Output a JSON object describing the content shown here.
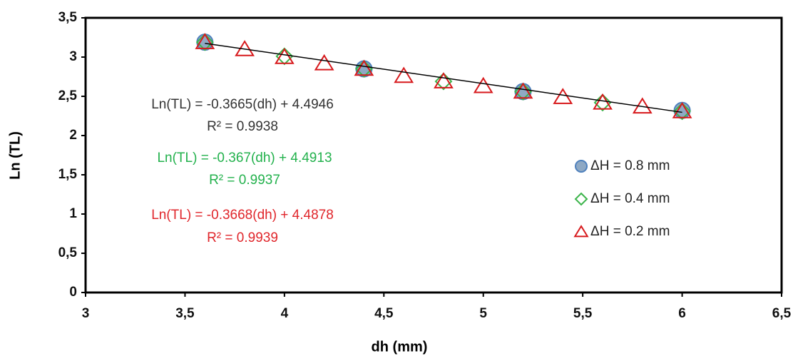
{
  "chart_data": {
    "type": "scatter",
    "x_label": "dh (mm)",
    "y_label": "Ln (TL)",
    "xlim": [
      3,
      6.5
    ],
    "xticks": [
      3,
      {
        "value": 3.5,
        "label": "3,5"
      },
      4,
      {
        "value": 4.5,
        "label": "4,5"
      },
      5,
      {
        "value": 5.5,
        "label": "5,5"
      },
      6,
      {
        "value": 6.5,
        "label": "6,5"
      }
    ],
    "ylim": [
      0,
      3.5
    ],
    "yticks": [
      0,
      {
        "value": 0.5,
        "label": "0,5"
      },
      1,
      {
        "value": 1.5,
        "label": "1,5"
      },
      2,
      {
        "value": 2.5,
        "label": "2,5"
      },
      3,
      {
        "value": 3.5,
        "label": "3,5"
      }
    ],
    "series": [
      {
        "name": "ΔH = 0.8 mm",
        "marker": "circle",
        "color": "#4f81bd",
        "x": [
          3.6,
          4.4,
          5.2,
          6.0
        ],
        "values": [
          3.19,
          2.85,
          2.56,
          2.32
        ]
      },
      {
        "name": "ΔH = 0.4 mm",
        "marker": "diamond",
        "color": "#3cb44b",
        "x": [
          3.6,
          4.0,
          4.4,
          4.8,
          5.2,
          5.6,
          6.0
        ],
        "values": [
          3.19,
          3.01,
          2.85,
          2.69,
          2.56,
          2.42,
          2.31
        ]
      },
      {
        "name": "ΔH = 0.2 mm",
        "marker": "triangle",
        "color": "#d7191c",
        "x": [
          3.6,
          3.8,
          4.0,
          4.2,
          4.4,
          4.6,
          4.8,
          5.0,
          5.2,
          5.4,
          5.6,
          5.8,
          6.0
        ],
        "values": [
          3.19,
          3.1,
          3.0,
          2.92,
          2.85,
          2.76,
          2.69,
          2.63,
          2.56,
          2.49,
          2.42,
          2.37,
          2.31
        ]
      }
    ],
    "trendline": {
      "color": "#000000",
      "x": [
        3.6,
        6.0
      ],
      "values": [
        3.175,
        2.296
      ]
    },
    "annotations": [
      {
        "color": "#333333",
        "equation": "Ln(TL) = -0.3665(dh) + 4.4946",
        "r2": "R² = 0.9938"
      },
      {
        "color": "#22b14c",
        "equation": "Ln(TL) = -0.367(dh) + 4.4913",
        "r2": "R² = 0.9937"
      },
      {
        "color": "#e0262b",
        "equation": "Ln(TL) = -0.3668(dh) + 4.4878",
        "r2": "R² = 0.9939"
      }
    ]
  }
}
